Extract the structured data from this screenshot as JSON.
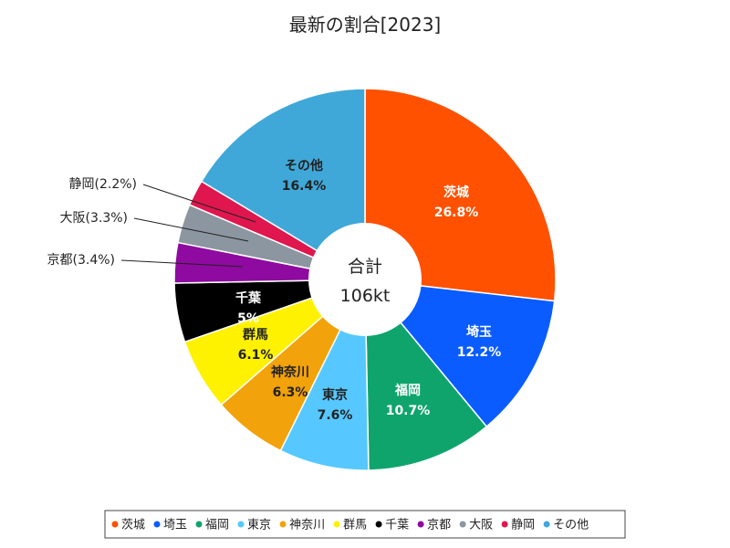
{
  "chart_data": {
    "type": "pie",
    "variant": "donut",
    "title": "最新の割合[2023]",
    "center_label": [
      "合計",
      "106kt"
    ],
    "slices": [
      {
        "name": "茨城",
        "value": 26.8,
        "label": "26.8%",
        "color": "#ff5100",
        "text_color": "#ffffff"
      },
      {
        "name": "埼玉",
        "value": 12.2,
        "label": "12.2%",
        "color": "#0a5cff",
        "text_color": "#ffffff"
      },
      {
        "name": "福岡",
        "value": 10.7,
        "label": "10.7%",
        "color": "#0fa46c",
        "text_color": "#ffffff"
      },
      {
        "name": "東京",
        "value": 7.6,
        "label": "7.6%",
        "color": "#56c8ff",
        "text_color": "#222222"
      },
      {
        "name": "神奈川",
        "value": 6.3,
        "label": "6.3%",
        "color": "#f2a20a",
        "text_color": "#222222"
      },
      {
        "name": "群馬",
        "value": 6.1,
        "label": "6.1%",
        "color": "#fff200",
        "text_color": "#222222"
      },
      {
        "name": "千葉",
        "value": 5.0,
        "label": "5%",
        "color": "#000000",
        "text_color": "#ffffff"
      },
      {
        "name": "京都",
        "value": 3.4,
        "label": "3.4%",
        "color": "#8e0aa0",
        "callout": "京都(3.4%)"
      },
      {
        "name": "大阪",
        "value": 3.3,
        "label": "3.3%",
        "color": "#8c96a0",
        "callout": "大阪(3.3%)"
      },
      {
        "name": "静岡",
        "value": 2.2,
        "label": "2.2%",
        "color": "#e0164e",
        "callout": "静岡(2.2%)"
      },
      {
        "name": "その他",
        "value": 16.4,
        "label": "16.4%",
        "color": "#3fa8d8",
        "text_color": "#222222"
      }
    ],
    "legend": [
      "茨城",
      "埼玉",
      "福岡",
      "東京",
      "神奈川",
      "群馬",
      "千葉",
      "京都",
      "大阪",
      "静岡",
      "その他"
    ],
    "legend_position": "bottom"
  }
}
